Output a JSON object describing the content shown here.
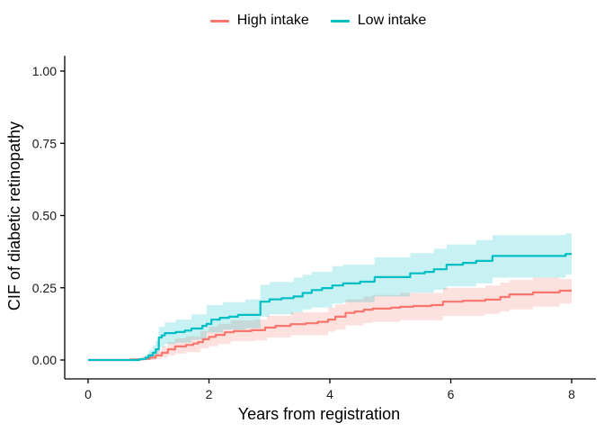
{
  "legend": {
    "items": [
      {
        "label": "High intake",
        "color": "#F8766D"
      },
      {
        "label": "Low intake",
        "color": "#00BFC4"
      }
    ]
  },
  "axes": {
    "x": {
      "title": "Years from registration",
      "tick_labels": [
        "0",
        "2",
        "4",
        "6",
        "8"
      ],
      "tick_values": [
        0,
        2,
        4,
        6,
        8
      ],
      "range": [
        0,
        8
      ]
    },
    "y": {
      "title": "CIF of diabetic retinopathy",
      "tick_labels": [
        "0.00",
        "0.25",
        "0.50",
        "0.75",
        "1.00"
      ],
      "tick_values": [
        0,
        0.25,
        0.5,
        0.75,
        1.0
      ],
      "range": [
        0,
        1
      ]
    }
  },
  "chart_data": {
    "type": "line",
    "subtype": "step-function-cumulative-incidence-with-confidence-bands",
    "title": "",
    "xlabel": "Years from registration",
    "ylabel": "CIF of diabetic retinopathy",
    "xlim": [
      0,
      8
    ],
    "ylim": [
      0,
      1
    ],
    "grid": false,
    "legend_position": "top-center",
    "background": "#ffffff",
    "axis_color": "#000000",
    "band_opacity": 0.22,
    "series": [
      {
        "name": "High intake",
        "color": "#F8766D",
        "steps": [
          [
            0.0,
            0.0
          ],
          [
            0.7,
            0.002
          ],
          [
            0.9,
            0.004
          ],
          [
            1.02,
            0.008
          ],
          [
            1.12,
            0.016
          ],
          [
            1.22,
            0.025
          ],
          [
            1.32,
            0.037
          ],
          [
            1.44,
            0.047
          ],
          [
            1.62,
            0.052
          ],
          [
            1.74,
            0.057
          ],
          [
            1.82,
            0.062
          ],
          [
            1.9,
            0.072
          ],
          [
            2.0,
            0.08
          ],
          [
            2.11,
            0.087
          ],
          [
            2.26,
            0.096
          ],
          [
            2.41,
            0.1
          ],
          [
            2.7,
            0.103
          ],
          [
            2.93,
            0.112
          ],
          [
            3.1,
            0.118
          ],
          [
            3.35,
            0.124
          ],
          [
            3.6,
            0.127
          ],
          [
            3.8,
            0.132
          ],
          [
            3.97,
            0.14
          ],
          [
            4.09,
            0.15
          ],
          [
            4.26,
            0.163
          ],
          [
            4.41,
            0.168
          ],
          [
            4.56,
            0.174
          ],
          [
            4.71,
            0.178
          ],
          [
            5.01,
            0.181
          ],
          [
            5.16,
            0.184
          ],
          [
            5.38,
            0.187
          ],
          [
            5.68,
            0.19
          ],
          [
            5.87,
            0.202
          ],
          [
            6.2,
            0.205
          ],
          [
            6.57,
            0.209
          ],
          [
            6.82,
            0.218
          ],
          [
            6.97,
            0.227
          ],
          [
            7.36,
            0.234
          ],
          [
            7.8,
            0.24
          ],
          [
            8.0,
            0.24
          ]
        ],
        "band": [
          [
            0.7,
            0.0,
            0.004
          ],
          [
            0.9,
            0.0,
            0.012
          ],
          [
            1.02,
            0.0,
            0.022
          ],
          [
            1.12,
            0.004,
            0.034
          ],
          [
            1.22,
            0.008,
            0.046
          ],
          [
            1.32,
            0.015,
            0.062
          ],
          [
            1.44,
            0.022,
            0.075
          ],
          [
            1.62,
            0.027,
            0.082
          ],
          [
            1.86,
            0.04,
            0.1
          ],
          [
            2.0,
            0.048,
            0.115
          ],
          [
            2.15,
            0.055,
            0.125
          ],
          [
            2.36,
            0.065,
            0.137
          ],
          [
            2.75,
            0.068,
            0.14
          ],
          [
            2.96,
            0.078,
            0.153
          ],
          [
            3.35,
            0.086,
            0.165
          ],
          [
            3.97,
            0.098,
            0.182
          ],
          [
            4.09,
            0.105,
            0.192
          ],
          [
            4.26,
            0.12,
            0.21
          ],
          [
            4.56,
            0.128,
            0.22
          ],
          [
            4.71,
            0.132,
            0.225
          ],
          [
            5.16,
            0.138,
            0.232
          ],
          [
            5.87,
            0.153,
            0.25
          ],
          [
            6.57,
            0.16,
            0.258
          ],
          [
            6.82,
            0.168,
            0.268
          ],
          [
            6.97,
            0.175,
            0.277
          ],
          [
            7.36,
            0.185,
            0.285
          ],
          [
            7.8,
            0.195,
            0.28
          ]
        ]
      },
      {
        "name": "Low intake",
        "color": "#00BFC4",
        "steps": [
          [
            0.0,
            0.0
          ],
          [
            0.85,
            0.003
          ],
          [
            0.95,
            0.008
          ],
          [
            1.0,
            0.016
          ],
          [
            1.07,
            0.025
          ],
          [
            1.12,
            0.037
          ],
          [
            1.17,
            0.078
          ],
          [
            1.22,
            0.085
          ],
          [
            1.27,
            0.093
          ],
          [
            1.45,
            0.097
          ],
          [
            1.6,
            0.102
          ],
          [
            1.71,
            0.109
          ],
          [
            1.89,
            0.118
          ],
          [
            1.96,
            0.125
          ],
          [
            2.04,
            0.14
          ],
          [
            2.18,
            0.146
          ],
          [
            2.33,
            0.15
          ],
          [
            2.48,
            0.156
          ],
          [
            2.85,
            0.202
          ],
          [
            3.0,
            0.21
          ],
          [
            3.2,
            0.214
          ],
          [
            3.4,
            0.22
          ],
          [
            3.55,
            0.232
          ],
          [
            3.7,
            0.242
          ],
          [
            3.87,
            0.249
          ],
          [
            4.04,
            0.258
          ],
          [
            4.22,
            0.265
          ],
          [
            4.5,
            0.271
          ],
          [
            4.74,
            0.287
          ],
          [
            5.33,
            0.3
          ],
          [
            5.57,
            0.305
          ],
          [
            5.72,
            0.314
          ],
          [
            5.93,
            0.33
          ],
          [
            6.2,
            0.336
          ],
          [
            6.42,
            0.343
          ],
          [
            6.69,
            0.36
          ],
          [
            7.9,
            0.367
          ],
          [
            8.0,
            0.367
          ]
        ],
        "band": [
          [
            0.85,
            0.0,
            0.005
          ],
          [
            0.95,
            0.0,
            0.02
          ],
          [
            1.0,
            0.005,
            0.035
          ],
          [
            1.07,
            0.01,
            0.05
          ],
          [
            1.12,
            0.015,
            0.065
          ],
          [
            1.17,
            0.045,
            0.115
          ],
          [
            1.27,
            0.055,
            0.13
          ],
          [
            1.45,
            0.06,
            0.14
          ],
          [
            1.71,
            0.07,
            0.158
          ],
          [
            1.96,
            0.095,
            0.19
          ],
          [
            2.23,
            0.105,
            0.2
          ],
          [
            2.6,
            0.11,
            0.21
          ],
          [
            2.85,
            0.15,
            0.26
          ],
          [
            3.0,
            0.158,
            0.27
          ],
          [
            3.4,
            0.165,
            0.285
          ],
          [
            3.55,
            0.175,
            0.295
          ],
          [
            3.7,
            0.182,
            0.305
          ],
          [
            4.04,
            0.195,
            0.325
          ],
          [
            4.22,
            0.2,
            0.33
          ],
          [
            4.74,
            0.22,
            0.355
          ],
          [
            5.33,
            0.233,
            0.37
          ],
          [
            5.72,
            0.243,
            0.385
          ],
          [
            5.93,
            0.255,
            0.4
          ],
          [
            6.42,
            0.265,
            0.415
          ],
          [
            6.69,
            0.285,
            0.432
          ],
          [
            7.9,
            0.295,
            0.438
          ]
        ]
      }
    ]
  }
}
